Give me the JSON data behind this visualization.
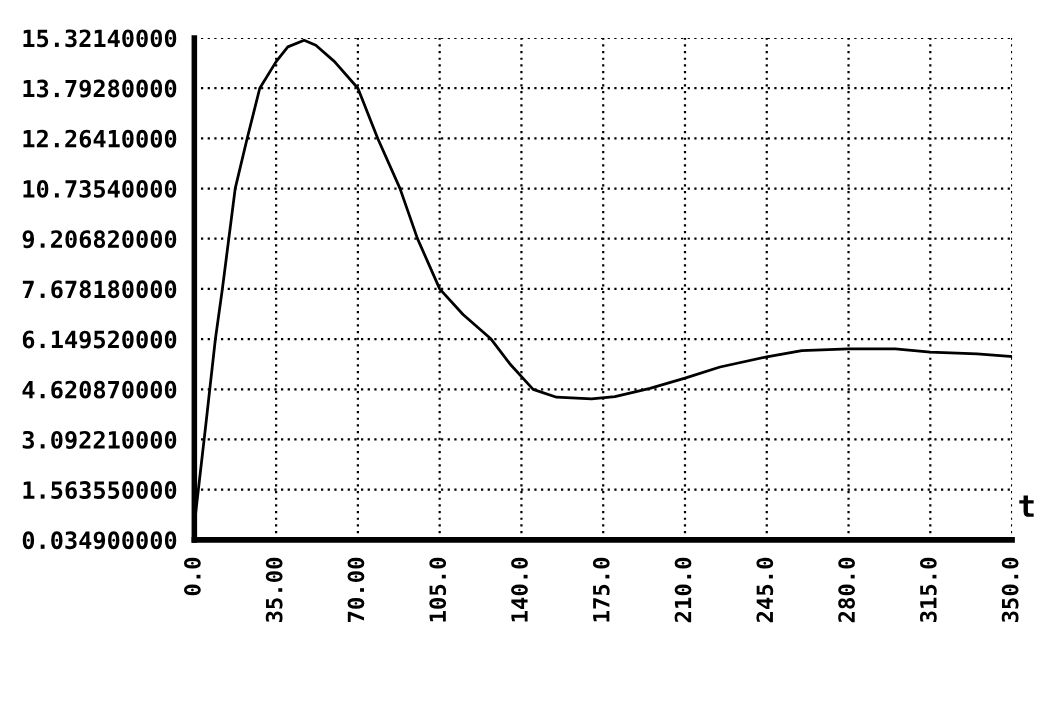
{
  "chart_data": {
    "type": "line",
    "xlabel": "t",
    "x": [
      0,
      5,
      9,
      12,
      17.5,
      22.6,
      28,
      35,
      40,
      47,
      52,
      60,
      70,
      78.5,
      88,
      95.5,
      105,
      115,
      127,
      135,
      145,
      155,
      170,
      180,
      195,
      210,
      225,
      245,
      260,
      280,
      300,
      315,
      335,
      350
    ],
    "values": [
      0.5,
      3.6,
      6.15,
      7.68,
      10.74,
      12.26,
      13.79,
      14.6,
      15.05,
      15.25,
      15.1,
      14.6,
      13.79,
      12.26,
      10.74,
      9.21,
      7.68,
      6.9,
      6.15,
      5.4,
      4.62,
      4.38,
      4.33,
      4.4,
      4.65,
      4.96,
      5.3,
      5.61,
      5.8,
      5.85,
      5.85,
      5.75,
      5.7,
      5.62
    ],
    "color": "#000000",
    "xlim": [
      0,
      350
    ],
    "ylim": [
      0.0349,
      15.3214
    ],
    "xticks": [
      {
        "value": 0,
        "label": "0.0"
      },
      {
        "value": 35,
        "label": "35.00"
      },
      {
        "value": 70,
        "label": "70.00"
      },
      {
        "value": 105,
        "label": "105.0"
      },
      {
        "value": 140,
        "label": "140.0"
      },
      {
        "value": 175,
        "label": "175.0"
      },
      {
        "value": 210,
        "label": "210.0"
      },
      {
        "value": 245,
        "label": "245.0"
      },
      {
        "value": 280,
        "label": "280.0"
      },
      {
        "value": 315,
        "label": "315.0"
      },
      {
        "value": 350,
        "label": "350.0"
      }
    ],
    "yticks": [
      {
        "value": 0.0349,
        "label": "0.034900000"
      },
      {
        "value": 1.56355,
        "label": "1.563550000"
      },
      {
        "value": 3.09221,
        "label": "3.092210000"
      },
      {
        "value": 4.62087,
        "label": "4.620870000"
      },
      {
        "value": 6.14952,
        "label": "6.149520000"
      },
      {
        "value": 7.67818,
        "label": "7.678180000"
      },
      {
        "value": 9.20682,
        "label": "9.206820000"
      },
      {
        "value": 10.7354,
        "label": "10.73540000"
      },
      {
        "value": 12.2641,
        "label": "12.26410000"
      },
      {
        "value": 13.7928,
        "label": "13.79280000"
      },
      {
        "value": 15.3214,
        "label": "15.32140000"
      }
    ],
    "grid": true,
    "line_style": "solid",
    "marker": "none"
  }
}
